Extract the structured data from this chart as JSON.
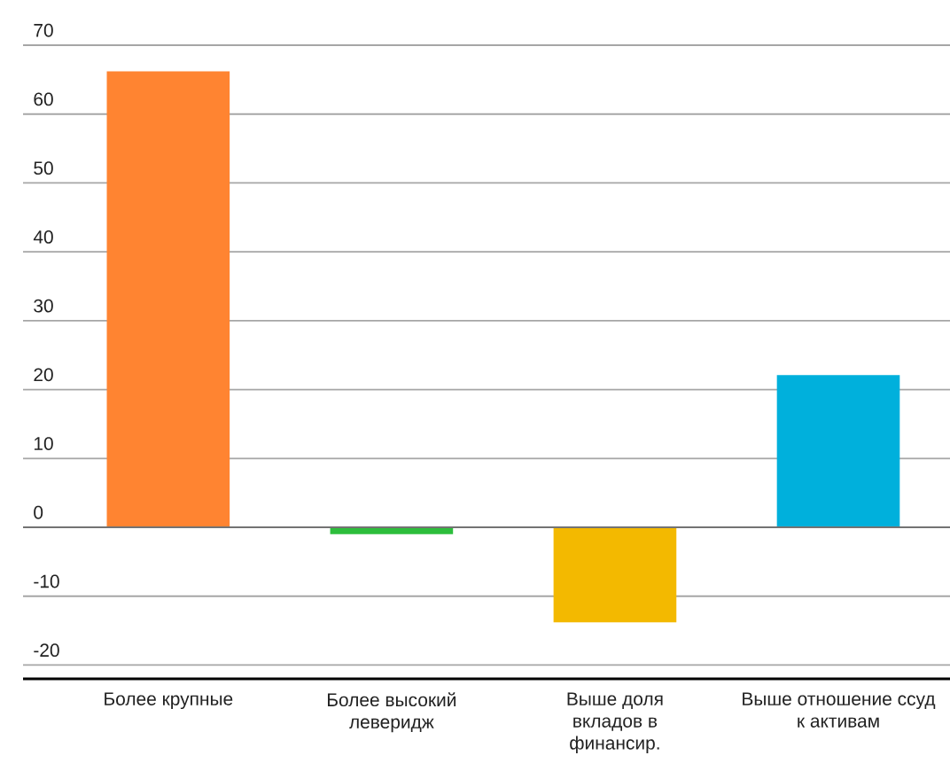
{
  "chart_data": {
    "type": "bar",
    "categories": [
      "Более крупные",
      "Более высокий леверидж",
      "Выше доля вкладов в финансир.",
      "Выше отношение ссуд к активам"
    ],
    "values": [
      66.2,
      -1,
      -13.8,
      22.1
    ],
    "colors": [
      "#ff8431",
      "#2dbe3c",
      "#f3b900",
      "#00b0dc"
    ],
    "ylim": [
      -22,
      70
    ],
    "yticks": [
      -20,
      -10,
      0,
      10,
      20,
      30,
      40,
      50,
      60,
      70
    ],
    "grid": "y"
  }
}
